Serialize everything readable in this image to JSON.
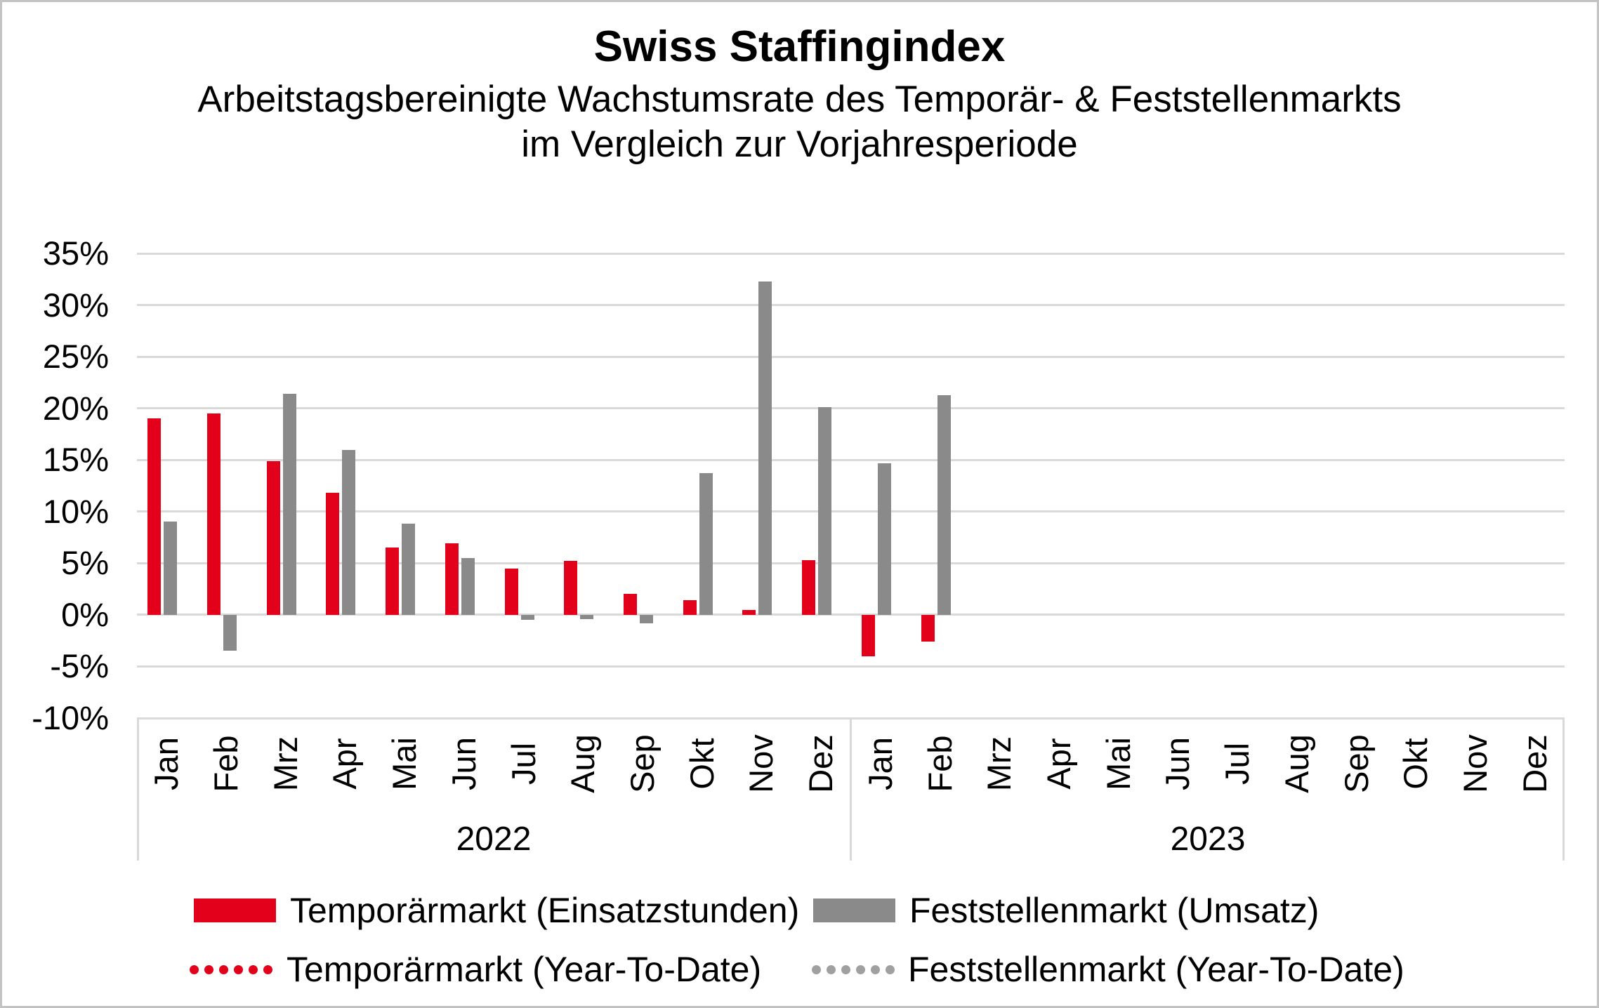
{
  "window": {
    "background": "#FFFFFF",
    "border_color": "#C3C3C3"
  },
  "header": {
    "title": "Swiss Staffingindex",
    "subtitle_line1": "Arbeitstagsbereinigte Wachstumsrate des Temporär- & Feststellenmarkts",
    "subtitle_line2": "im Vergleich zur Vorjahresperiode"
  },
  "chart_data": {
    "type": "bar",
    "title": "Swiss Staffingindex",
    "subtitle": "Arbeitstagsbereinigte Wachstumsrate des Temporär- & Feststellenmarkts im Vergleich zur Vorjahresperiode",
    "ylim": [
      -10,
      35
    ],
    "ytick_step": 5,
    "ytick_suffix": "%",
    "grid": true,
    "gridline_color": "#D9D9D9",
    "legend_position": "bottom",
    "xlabel": "",
    "ylabel": "",
    "months": [
      "Jan",
      "Feb",
      "Mrz",
      "Apr",
      "Mai",
      "Jun",
      "Jul",
      "Aug",
      "Sep",
      "Okt",
      "Nov",
      "Dez"
    ],
    "year_groups": [
      {
        "label": "2022"
      },
      {
        "label": "2023"
      }
    ],
    "series": [
      {
        "key": "temporaermarkt",
        "name": "Temporärmarkt (Einsatzstunden)",
        "color": "#E2001A",
        "style": "solid",
        "values": [
          19.0,
          19.5,
          14.9,
          11.8,
          6.5,
          6.9,
          4.5,
          5.2,
          2.0,
          1.4,
          0.5,
          5.3,
          -4.0,
          -2.6,
          null,
          null,
          null,
          null,
          null,
          null,
          null,
          null,
          null,
          null
        ]
      },
      {
        "key": "feststellenmarkt",
        "name": "Feststellenmarkt (Umsatz)",
        "color": "#8A8A8A",
        "style": "solid",
        "values": [
          9.0,
          -3.5,
          21.4,
          16.0,
          8.8,
          5.5,
          -0.5,
          -0.4,
          -0.8,
          13.7,
          32.3,
          20.1,
          14.7,
          21.3,
          null,
          null,
          null,
          null,
          null,
          null,
          null,
          null,
          null,
          null
        ]
      },
      {
        "key": "temporaermarkt-ytd",
        "name": "Temporärmarkt (Year-To-Date)",
        "color": "#E2001A",
        "style": "dotted",
        "values": null
      },
      {
        "key": "feststellenmarkt-ytd",
        "name": "Feststellenmarkt (Year-To-Date)",
        "color": "#A0A0A0",
        "style": "dotted",
        "values": null
      }
    ]
  }
}
